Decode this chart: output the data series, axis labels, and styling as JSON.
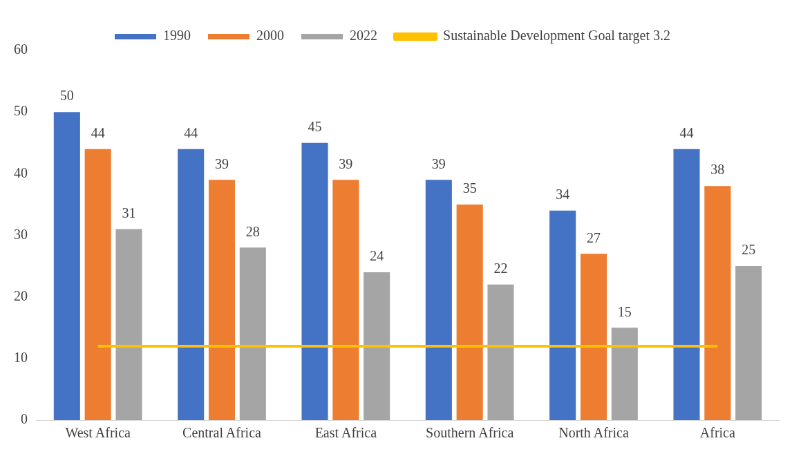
{
  "chart_data": {
    "type": "bar",
    "categories": [
      "West Africa",
      "Central Africa",
      "East Africa",
      "Southern Africa",
      "North Africa",
      "Africa"
    ],
    "series": [
      {
        "name": "1990",
        "color": "#4472c4",
        "values": [
          50,
          44,
          45,
          39,
          34,
          44
        ],
        "value_labels": [
          "50",
          "44",
          "45",
          "39",
          "34",
          "44"
        ]
      },
      {
        "name": "2000",
        "color": "#ed7d31",
        "values": [
          44,
          39,
          39,
          35,
          27,
          38
        ],
        "value_labels": [
          "44",
          "39",
          "39",
          "35",
          "27",
          "38"
        ]
      },
      {
        "name": "2022",
        "color": "#a5a5a5",
        "values": [
          31,
          28,
          24,
          22,
          15,
          25
        ],
        "value_labels": [
          "31",
          "28",
          "24",
          "22",
          "15",
          "25"
        ]
      },
      {
        "name": "Sustainable Development Goal target 3.2",
        "type": "line",
        "color": "#ffc000",
        "values": [
          12,
          12,
          12,
          12,
          12,
          12
        ]
      }
    ],
    "ylim": [
      0,
      60
    ],
    "yticks": [
      0,
      10,
      20,
      30,
      40,
      50,
      60
    ],
    "grid": false,
    "legend": "top",
    "marker": "none"
  }
}
